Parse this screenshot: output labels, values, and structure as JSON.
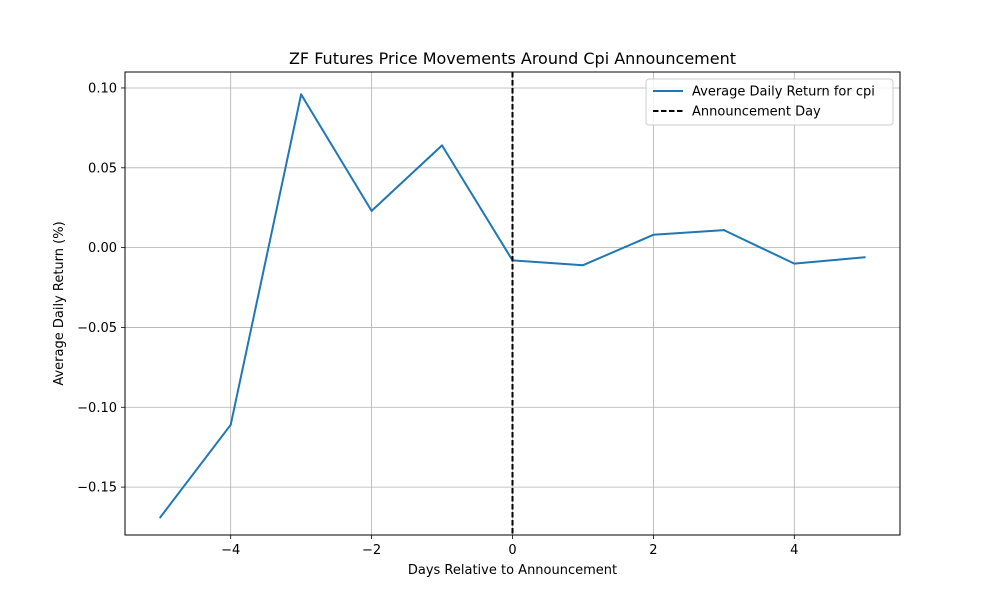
{
  "chart_data": {
    "type": "line",
    "title": "ZF Futures Price Movements Around Cpi Announcement",
    "xlabel": "Days Relative to Announcement",
    "ylabel": "Average Daily Return (%)",
    "xlim": [
      -5.5,
      5.5
    ],
    "ylim": [
      -0.18,
      0.11
    ],
    "x_ticks": [
      -4,
      -2,
      0,
      2,
      4
    ],
    "x_tick_labels": [
      "−4",
      "−2",
      "0",
      "2",
      "4"
    ],
    "y_ticks": [
      -0.15,
      -0.1,
      -0.05,
      0.0,
      0.05,
      0.1
    ],
    "y_tick_labels": [
      "−0.15",
      "−0.10",
      "−0.05",
      "0.00",
      "0.05",
      "0.10"
    ],
    "grid": true,
    "legend_position": "top-right",
    "series": [
      {
        "name": "Average Daily Return for cpi",
        "color": "#1f77b4",
        "style": "solid",
        "x": [
          -5,
          -4,
          -3,
          -2,
          -1,
          0,
          1,
          2,
          3,
          4,
          5
        ],
        "y": [
          -0.169,
          -0.111,
          0.096,
          0.023,
          0.064,
          -0.008,
          -0.011,
          0.008,
          0.011,
          -0.01,
          -0.006
        ]
      }
    ],
    "vlines": [
      {
        "name": "Announcement Day",
        "x": 0,
        "color": "#000000",
        "style": "dashed"
      }
    ]
  }
}
